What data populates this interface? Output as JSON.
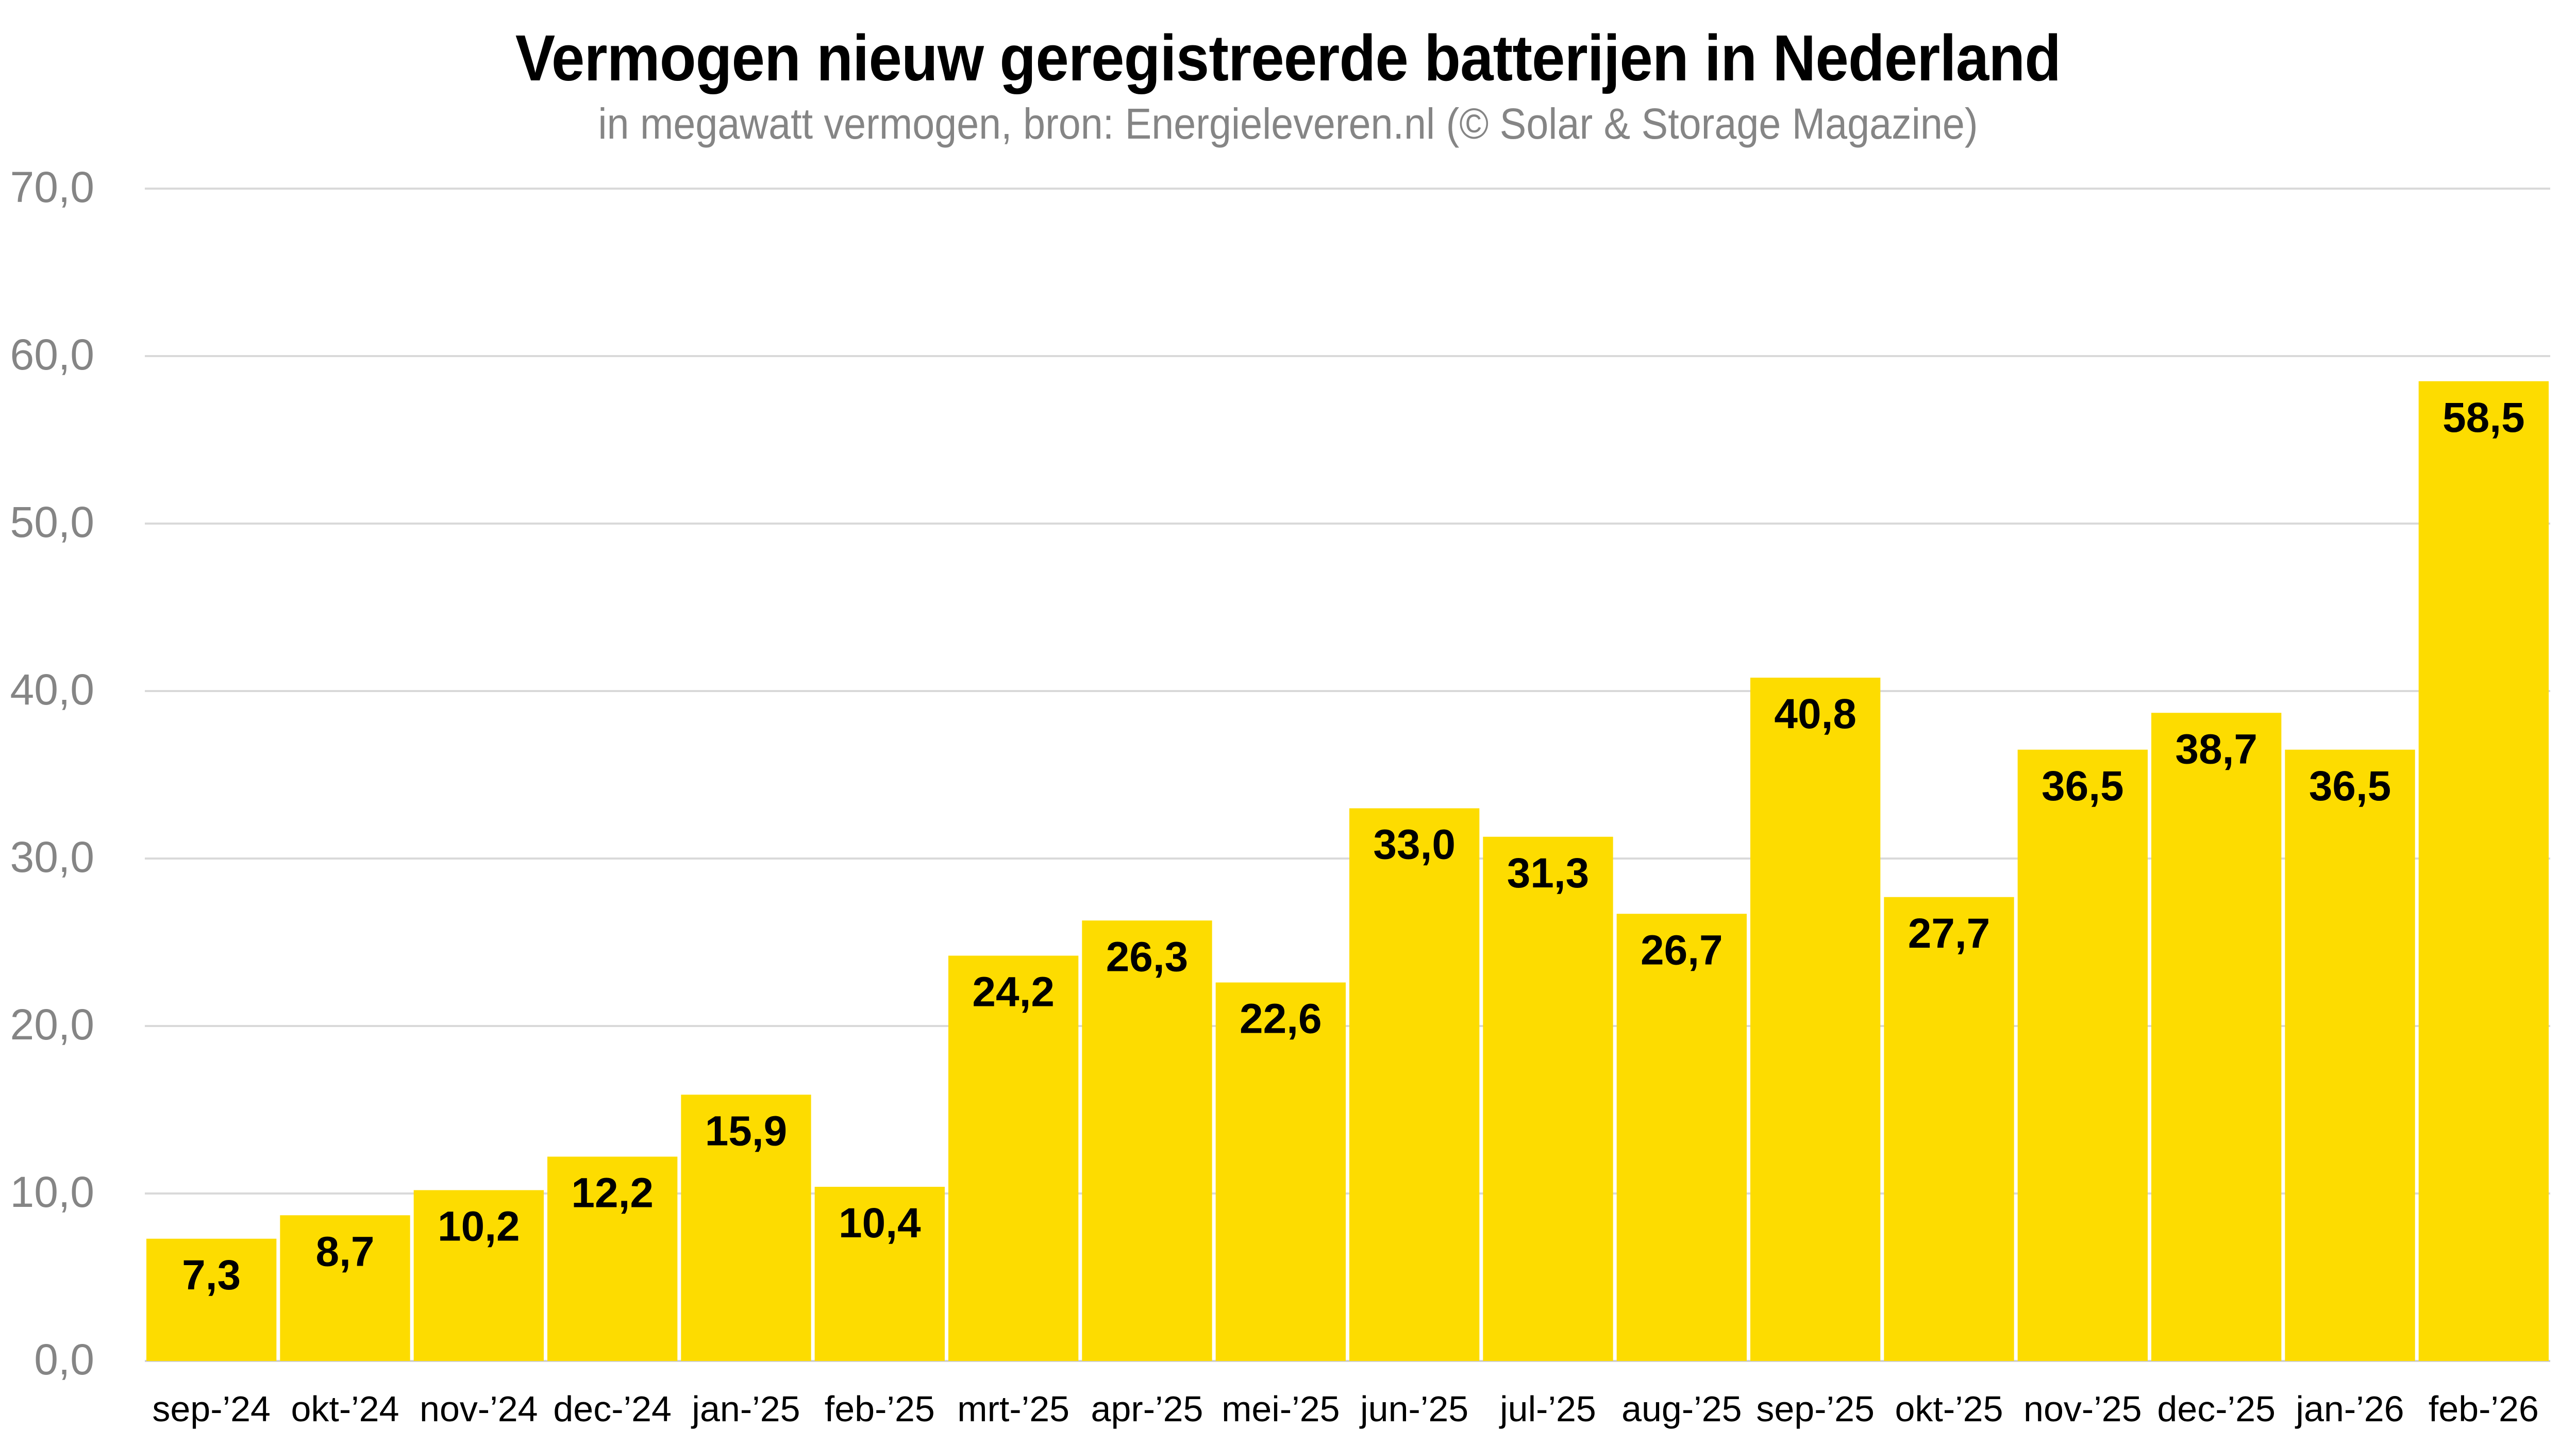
{
  "chart_data": {
    "type": "bar",
    "title": "Vermogen nieuw geregistreerde batterijen in Nederland",
    "subtitle": "in megawatt vermogen, bron: Energieleveren.nl (© Solar & Storage Magazine)",
    "xlabel": "",
    "ylabel": "",
    "ylim": [
      0,
      70
    ],
    "yticks": [
      0,
      10,
      20,
      30,
      40,
      50,
      60,
      70
    ],
    "ytick_labels": [
      "0,0",
      "10,0",
      "20,0",
      "30,0",
      "40,0",
      "50,0",
      "60,0",
      "70,0"
    ],
    "grid": true,
    "legend": "none",
    "bar_color": "#FDDC00",
    "categories": [
      "sep-’24",
      "okt-’24",
      "nov-’24",
      "dec-’24",
      "jan-’25",
      "feb-’25",
      "mrt-’25",
      "apr-’25",
      "mei-’25",
      "jun-’25",
      "jul-’25",
      "aug-’25",
      "sep-’25",
      "okt-’25",
      "nov-’25",
      "dec-’25",
      "jan-’26",
      "feb-’26"
    ],
    "values": [
      7.3,
      8.7,
      10.2,
      12.2,
      15.9,
      10.4,
      24.2,
      26.3,
      22.6,
      33.0,
      31.3,
      26.7,
      40.8,
      27.7,
      36.5,
      38.7,
      36.5,
      58.5
    ],
    "value_labels": [
      "7,3",
      "8,7",
      "10,2",
      "12,2",
      "15,9",
      "10,4",
      "24,2",
      "26,3",
      "22,6",
      "33,0",
      "31,3",
      "26,7",
      "40,8",
      "27,7",
      "36,5",
      "38,7",
      "36,5",
      "58,5"
    ]
  }
}
